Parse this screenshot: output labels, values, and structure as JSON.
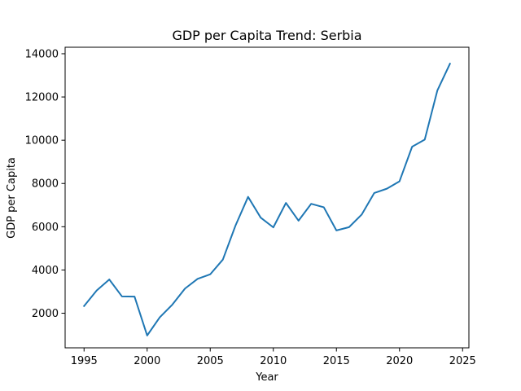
{
  "chart_data": {
    "type": "line",
    "title": "GDP per Capita Trend: Serbia",
    "xlabel": "Year",
    "ylabel": "GDP per Capita",
    "xlim": [
      1993.5,
      2025.5
    ],
    "ylim": [
      400,
      14300
    ],
    "xticks": [
      1995,
      2000,
      2005,
      2010,
      2015,
      2020,
      2025
    ],
    "yticks": [
      2000,
      4000,
      6000,
      8000,
      10000,
      12000,
      14000
    ],
    "grid": false,
    "legend": "none",
    "series": [
      {
        "color": "#1f77b4",
        "x": [
          1995,
          1996,
          1997,
          1998,
          1999,
          2000,
          2001,
          2002,
          2003,
          2004,
          2005,
          2006,
          2007,
          2008,
          2009,
          2010,
          2011,
          2012,
          2013,
          2014,
          2015,
          2016,
          2017,
          2018,
          2019,
          2020,
          2021,
          2022,
          2023,
          2024
        ],
        "y": [
          2330,
          3050,
          3560,
          2780,
          2770,
          970,
          1810,
          2400,
          3140,
          3590,
          3800,
          4480,
          6050,
          7380,
          6420,
          5970,
          7100,
          6280,
          7060,
          6900,
          5830,
          5980,
          6560,
          7560,
          7760,
          8100,
          9700,
          10030,
          12300,
          13540
        ]
      }
    ]
  }
}
